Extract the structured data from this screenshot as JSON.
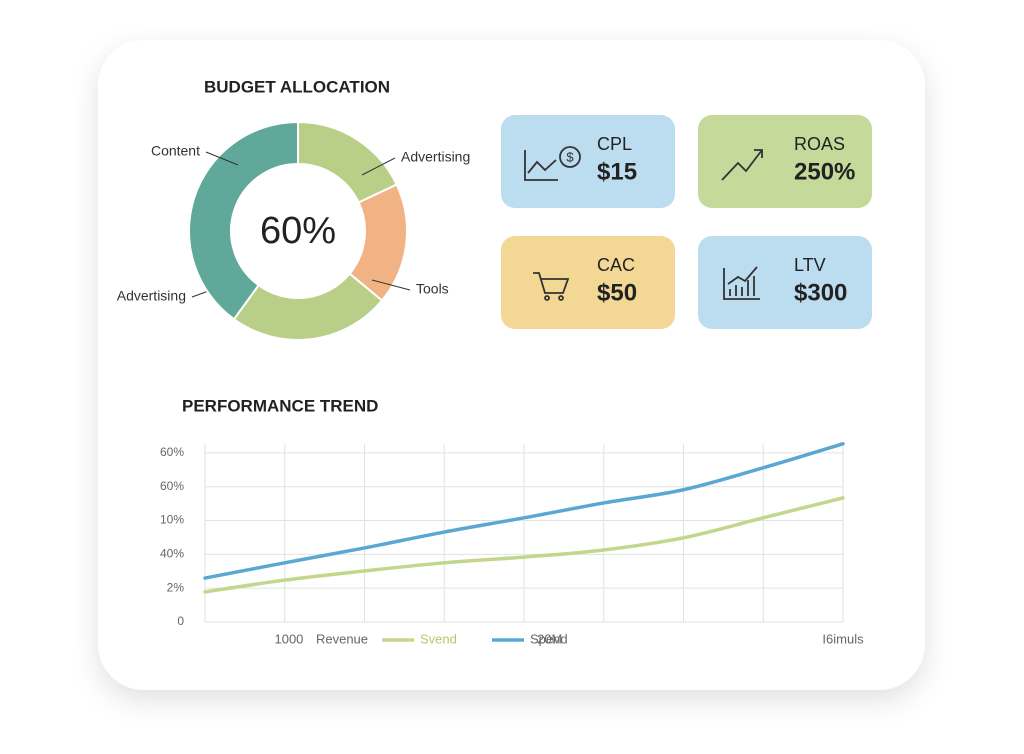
{
  "chart_data": [
    {
      "type": "donut",
      "title": "BUDGET ALLOCATION",
      "center_label": "60%",
      "categories": [
        "Advertising",
        "Tools",
        "Advertising",
        "Content"
      ],
      "values": [
        18,
        18,
        24,
        40
      ],
      "colors": [
        "#b9cf88",
        "#f2b384",
        "#b9cf88",
        "#5fa89a"
      ]
    },
    {
      "type": "line",
      "title": "PERFORMANCE TREND",
      "x": [
        0,
        1,
        2,
        3,
        4,
        5,
        6,
        7,
        8
      ],
      "xlim": [
        0,
        8
      ],
      "xticks": [
        {
          "value": 1,
          "label": "1000"
        },
        {
          "value": 5,
          "label": "20M"
        },
        {
          "value": 8,
          "label": "I6imuls"
        }
      ],
      "ylim": [
        0,
        5.5
      ],
      "yticks": [
        {
          "value": 0,
          "label": "0"
        },
        {
          "value": 1,
          "label": "2%"
        },
        {
          "value": 2,
          "label": "40%"
        },
        {
          "value": 3,
          "label": "10%"
        },
        {
          "value": 4,
          "label": "60%"
        },
        {
          "value": 5,
          "label": "60%"
        }
      ],
      "grid": true,
      "legend_title": "Revenue",
      "series": [
        {
          "name": "Svend",
          "color": "#c2d68c",
          "values": [
            0.89,
            1.24,
            1.51,
            1.75,
            1.92,
            2.13,
            2.49,
            3.08,
            3.67
          ]
        },
        {
          "name": "Spend",
          "color": "#5aa8d2",
          "values": [
            1.3,
            1.75,
            2.19,
            2.66,
            3.08,
            3.52,
            3.91,
            4.56,
            5.27
          ]
        }
      ]
    }
  ],
  "kpis": [
    {
      "label": "CPL",
      "value": "$15"
    },
    {
      "label": "ROAS",
      "value": "250%"
    },
    {
      "label": "CAC",
      "value": "$50"
    },
    {
      "label": "LTV",
      "value": "$300"
    }
  ]
}
